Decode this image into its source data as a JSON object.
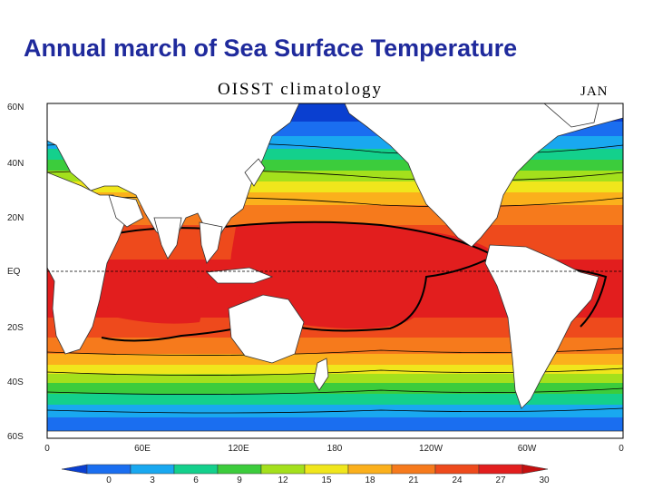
{
  "slide": {
    "title": "Annual march of Sea Surface Temperature"
  },
  "map": {
    "title": "OISST climatology",
    "month": "JAN",
    "lat_labels": [
      "60N",
      "40N",
      "20N",
      "EQ",
      "20S",
      "40S",
      "60S"
    ],
    "lon_labels": [
      "0",
      "60E",
      "120E",
      "180",
      "120W",
      "60W",
      "0"
    ]
  },
  "colorbar": {
    "ticks": [
      "0",
      "3",
      "6",
      "9",
      "12",
      "15",
      "18",
      "21",
      "24",
      "27",
      "30"
    ],
    "colors": [
      "#0a3fd0",
      "#1a6ef0",
      "#19a8f0",
      "#14d08c",
      "#3ccc3c",
      "#a4e01c",
      "#f0e61c",
      "#fbb01c",
      "#f67a1c",
      "#ee4a1c",
      "#e21e1e",
      "#c41010"
    ]
  },
  "colors": {
    "land": "#ffffff",
    "title": "#1f2a9c"
  }
}
